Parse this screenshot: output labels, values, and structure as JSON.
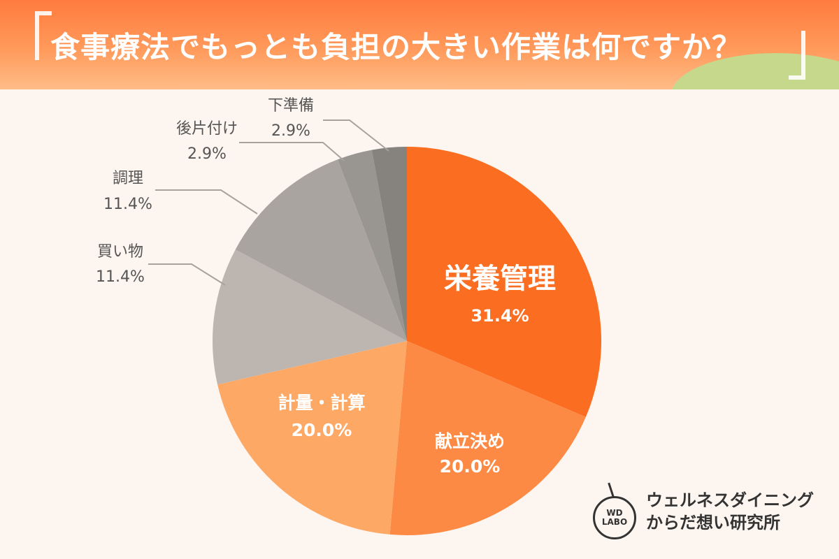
{
  "header": {
    "title": "食事療法でもっとも負担の大きい作業は何ですか？"
  },
  "chart_data": {
    "type": "pie",
    "title": "食事療法でもっとも負担の大きい作業は何ですか？",
    "slices": [
      {
        "label": "栄養管理",
        "value": 31.4,
        "display": "31.4%",
        "color": "#fb6d20"
      },
      {
        "label": "献立決め",
        "value": 20.0,
        "display": "20.0%",
        "color": "#fd8a44"
      },
      {
        "label": "計量・計算",
        "value": 20.0,
        "display": "20.0%",
        "color": "#fea866"
      },
      {
        "label": "買い物",
        "value": 11.4,
        "display": "11.4%",
        "color": "#bdb6b0"
      },
      {
        "label": "調理",
        "value": 11.4,
        "display": "11.4%",
        "color": "#a9a49f"
      },
      {
        "label": "後片付け",
        "value": 2.9,
        "display": "2.9%",
        "color": "#999590"
      },
      {
        "label": "下準備",
        "value": 2.9,
        "display": "2.9%",
        "color": "#86837f"
      }
    ]
  },
  "logo": {
    "badge_top": "WD",
    "badge_bottom": "LABO",
    "line1": "ウェルネスダイニング",
    "line2": "からだ想い研究所"
  }
}
